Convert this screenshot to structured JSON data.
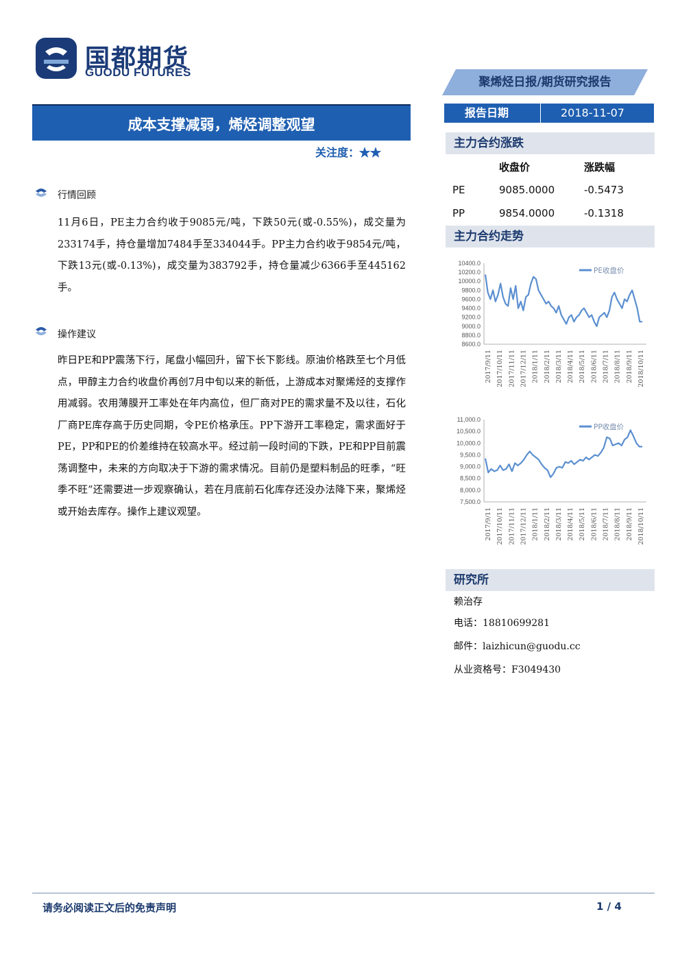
{
  "logo": {
    "cn": "国都期货",
    "en": "GUODU FUTURES"
  },
  "header": {
    "report_type": "聚烯烃日报/期货研究报告",
    "date_label": "报告日期",
    "date_value": "2018-11-07"
  },
  "title": "成本支撑减弱，烯烃调整观望",
  "focus": {
    "label": "关注度：",
    "stars": "★★"
  },
  "sections": [
    {
      "heading": "行情回顾",
      "body": "11月6日，PE主力合约收于9085元/吨，下跌50元(或-0.55%)，成交量为233174手，持仓量增加7484手至334044手。PP主力合约收于9854元/吨，下跌13元(或-0.13%)，成交量为383792手，持仓量减少6366手至445162手。"
    },
    {
      "heading": "操作建议",
      "body": "昨日PE和PP震荡下行，尾盘小幅回升，留下长下影线。原油价格跌至七个月低点，甲醇主力合约收盘价再创7月中旬以来的新低，上游成本对聚烯烃的支撑作用减弱。农用薄膜开工率处在年内高位，但厂商对PE的需求量不及以往，石化厂商PE库存高于历史同期，令PE价格承压。PP下游开工率稳定，需求面好于PE，PP和PE的价差维持在较高水平。经过前一段时间的下跌，PE和PP目前震荡调整中，未来的方向取决于下游的需求情况。目前仍是塑料制品的旺季，“旺季不旺”还需要进一步观察确认，若在月底前石化库存还没办法降下来，聚烯烃或开始去库存。操作上建议观望。"
    }
  ],
  "price_table": {
    "heading": "主力合约涨跌",
    "col_close": "收盘价",
    "col_change": "涨跌幅",
    "rows": [
      {
        "name": "PE",
        "close": "9085.0000",
        "change": "-0.5473"
      },
      {
        "name": "PP",
        "close": "9854.0000",
        "change": "-0.1318"
      }
    ]
  },
  "trend_heading": "主力合约走势",
  "chart_data": [
    {
      "type": "line",
      "series": [
        {
          "name": "PE收盘价",
          "values": [
            10150,
            9750,
            9600,
            9800,
            9550,
            9700,
            9950,
            9650,
            9500,
            9450,
            9850,
            9600,
            9900,
            9400,
            9550,
            9350,
            9650,
            9700,
            9950,
            10100,
            10050,
            9800,
            9700,
            9600,
            9500,
            9550,
            9450,
            9400,
            9300,
            9450,
            9250,
            9150,
            9050,
            9200,
            9250,
            9100,
            9200,
            9250,
            9350,
            9400,
            9300,
            9200,
            9250,
            9100,
            9000,
            9200,
            9250,
            9300,
            9200,
            9350,
            9650,
            9750,
            9600,
            9500,
            9400,
            9600,
            9550,
            9700,
            9800,
            9600,
            9400,
            9100,
            9100
          ]
        }
      ],
      "x_ticks": [
        "2017/9/11",
        "2017/10/11",
        "2017/11/11",
        "2017/12/11",
        "2018/1/11",
        "2018/2/11",
        "2018/3/11",
        "2018/4/11",
        "2018/5/11",
        "2018/6/11",
        "2018/7/11",
        "2018/8/11",
        "2018/9/11",
        "2018/10/11"
      ],
      "y_ticks": [
        "10400.0",
        "10200.0",
        "10000.0",
        "9800.0",
        "9600.0",
        "9400.0",
        "9200.0",
        "9000.0",
        "8800.0",
        "8600.0"
      ],
      "ylim": [
        8600,
        10400
      ]
    },
    {
      "type": "line",
      "series": [
        {
          "name": "PP收盘价",
          "values": [
            9350,
            8750,
            8900,
            8800,
            8850,
            9050,
            8850,
            8900,
            9100,
            8800,
            9150,
            9050,
            9150,
            9300,
            9500,
            9650,
            9500,
            9400,
            9300,
            9100,
            8950,
            8850,
            8550,
            8700,
            8950,
            9000,
            8950,
            9200,
            9150,
            9250,
            9100,
            9200,
            9300,
            9250,
            9400,
            9300,
            9400,
            9500,
            9450,
            9600,
            9800,
            10250,
            10200,
            9900,
            9950,
            10000,
            9900,
            10150,
            10250,
            10550,
            10300,
            10000,
            9850,
            9850
          ]
        }
      ],
      "x_ticks": [
        "2017/9/11",
        "2017/10/11",
        "2017/11/11",
        "2017/12/11",
        "2018/1/11",
        "2018/2/11",
        "2018/3/11",
        "2018/4/11",
        "2018/5/11",
        "2018/6/11",
        "2018/7/11",
        "2018/8/11",
        "2018/9/11",
        "2018/10/11"
      ],
      "y_ticks": [
        "11,000.0",
        "10,500.0",
        "10,000.0",
        "9,500.0",
        "9,000.0",
        "8,500.0",
        "8,000.0",
        "7,500.0"
      ],
      "ylim": [
        7500,
        11000
      ]
    }
  ],
  "research": {
    "heading": "研究所",
    "analyst": "赖治存",
    "phone": "电话：18810699281",
    "email": "邮件：laizhicun@guodu.cc",
    "license": "从业资格号：F3049430"
  },
  "footer": {
    "disclaimer": "请务必阅读正文后的免责声明",
    "page": "1 / 4"
  },
  "colors": {
    "brand_blue": "#1f5fb1",
    "line_blue": "#5b8fd0",
    "panel_grey": "#dfe4ec"
  }
}
